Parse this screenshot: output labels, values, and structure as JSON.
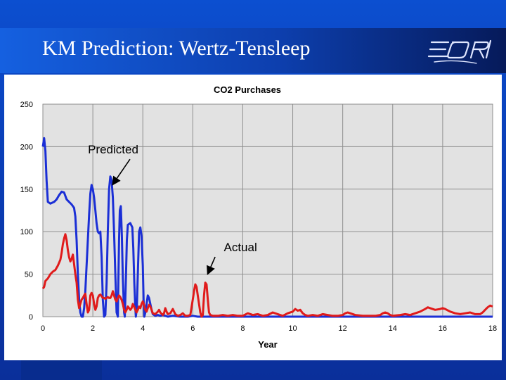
{
  "slide": {
    "title": "KM Prediction: Wertz-Tensleep",
    "logo_icon": "eori-logo-icon"
  },
  "colors": {
    "predicted": "#1b2fd6",
    "actual": "#e01b1b",
    "plot_bg": "#e2e2e2"
  },
  "chart_data": {
    "type": "line",
    "title": "CO2 Purchases",
    "xlabel": "Year",
    "ylabel": "",
    "xlim": [
      0,
      18
    ],
    "ylim": [
      0,
      250
    ],
    "xticks": [
      0,
      2,
      4,
      6,
      8,
      10,
      12,
      14,
      16,
      18
    ],
    "yticks": [
      0,
      50,
      100,
      150,
      200,
      250
    ],
    "grid": true,
    "annotations": [
      {
        "text": "Predicted",
        "points_to": [
          2.7,
          153
        ]
      },
      {
        "text": "Actual",
        "points_to": [
          6.5,
          48
        ]
      }
    ],
    "series": [
      {
        "name": "",
        "color": "#1b2fd6",
        "points": [
          [
            0,
            200
          ],
          [
            0.05,
            210
          ],
          [
            0.1,
            195
          ],
          [
            0.15,
            160
          ],
          [
            0.2,
            135
          ],
          [
            0.3,
            133
          ],
          [
            0.45,
            135
          ],
          [
            0.55,
            138
          ],
          [
            0.65,
            143
          ],
          [
            0.75,
            147
          ],
          [
            0.85,
            146
          ],
          [
            0.95,
            138
          ],
          [
            1.05,
            135
          ],
          [
            1.15,
            132
          ],
          [
            1.25,
            128
          ],
          [
            1.3,
            118
          ],
          [
            1.35,
            90
          ],
          [
            1.4,
            50
          ],
          [
            1.45,
            20
          ],
          [
            1.5,
            5
          ],
          [
            1.55,
            0
          ],
          [
            1.6,
            0
          ],
          [
            1.65,
            10
          ],
          [
            1.7,
            30
          ],
          [
            1.75,
            60
          ],
          [
            1.8,
            90
          ],
          [
            1.85,
            120
          ],
          [
            1.9,
            145
          ],
          [
            1.95,
            155
          ],
          [
            2.0,
            150
          ],
          [
            2.05,
            140
          ],
          [
            2.1,
            125
          ],
          [
            2.15,
            110
          ],
          [
            2.2,
            100
          ],
          [
            2.25,
            98
          ],
          [
            2.3,
            100
          ],
          [
            2.35,
            70
          ],
          [
            2.4,
            20
          ],
          [
            2.45,
            0
          ],
          [
            2.5,
            2
          ],
          [
            2.55,
            40
          ],
          [
            2.6,
            100
          ],
          [
            2.65,
            150
          ],
          [
            2.7,
            165
          ],
          [
            2.75,
            160
          ],
          [
            2.8,
            140
          ],
          [
            2.85,
            100
          ],
          [
            2.9,
            50
          ],
          [
            2.95,
            5
          ],
          [
            3.0,
            0
          ],
          [
            3.02,
            40
          ],
          [
            3.05,
            90
          ],
          [
            3.08,
            125
          ],
          [
            3.12,
            130
          ],
          [
            3.16,
            95
          ],
          [
            3.2,
            45
          ],
          [
            3.25,
            5
          ],
          [
            3.28,
            0
          ],
          [
            3.32,
            40
          ],
          [
            3.36,
            90
          ],
          [
            3.4,
            108
          ],
          [
            3.5,
            110
          ],
          [
            3.58,
            105
          ],
          [
            3.62,
            80
          ],
          [
            3.66,
            40
          ],
          [
            3.7,
            10
          ],
          [
            3.72,
            0
          ],
          [
            3.76,
            10
          ],
          [
            3.8,
            50
          ],
          [
            3.85,
            100
          ],
          [
            3.9,
            105
          ],
          [
            3.95,
            95
          ],
          [
            4.0,
            60
          ],
          [
            4.03,
            20
          ],
          [
            4.06,
            0
          ],
          [
            4.1,
            5
          ],
          [
            4.15,
            15
          ],
          [
            4.2,
            25
          ],
          [
            4.25,
            22
          ],
          [
            4.3,
            15
          ],
          [
            4.35,
            8
          ],
          [
            4.4,
            3
          ],
          [
            4.5,
            1
          ],
          [
            4.6,
            2
          ],
          [
            4.7,
            1
          ],
          [
            4.8,
            2
          ],
          [
            4.9,
            1
          ],
          [
            5.0,
            0
          ],
          [
            5.2,
            1
          ],
          [
            5.5,
            0
          ],
          [
            5.8,
            0
          ],
          [
            6.0,
            1
          ],
          [
            6.2,
            0
          ],
          [
            6.5,
            0
          ],
          [
            7,
            0
          ],
          [
            8,
            0
          ],
          [
            9,
            0
          ],
          [
            10,
            0
          ],
          [
            11,
            0
          ],
          [
            12,
            0
          ],
          [
            13,
            0
          ],
          [
            14,
            0
          ],
          [
            15,
            0
          ],
          [
            16,
            0
          ],
          [
            17,
            0
          ],
          [
            18,
            0
          ]
        ]
      },
      {
        "name": "",
        "color": "#e01b1b",
        "points": [
          [
            0,
            33
          ],
          [
            0.05,
            35
          ],
          [
            0.1,
            42
          ],
          [
            0.2,
            45
          ],
          [
            0.3,
            50
          ],
          [
            0.4,
            53
          ],
          [
            0.5,
            55
          ],
          [
            0.6,
            60
          ],
          [
            0.7,
            67
          ],
          [
            0.75,
            75
          ],
          [
            0.8,
            85
          ],
          [
            0.85,
            92
          ],
          [
            0.9,
            97
          ],
          [
            0.95,
            90
          ],
          [
            1.0,
            78
          ],
          [
            1.05,
            70
          ],
          [
            1.1,
            65
          ],
          [
            1.15,
            68
          ],
          [
            1.2,
            73
          ],
          [
            1.25,
            62
          ],
          [
            1.3,
            50
          ],
          [
            1.35,
            40
          ],
          [
            1.4,
            20
          ],
          [
            1.45,
            10
          ],
          [
            1.5,
            15
          ],
          [
            1.55,
            20
          ],
          [
            1.6,
            22
          ],
          [
            1.65,
            25
          ],
          [
            1.7,
            27
          ],
          [
            1.75,
            15
          ],
          [
            1.8,
            5
          ],
          [
            1.85,
            8
          ],
          [
            1.9,
            25
          ],
          [
            1.95,
            28
          ],
          [
            2.0,
            25
          ],
          [
            2.05,
            15
          ],
          [
            2.1,
            8
          ],
          [
            2.15,
            12
          ],
          [
            2.2,
            22
          ],
          [
            2.25,
            25
          ],
          [
            2.3,
            26
          ],
          [
            2.35,
            24
          ],
          [
            2.4,
            22
          ],
          [
            2.45,
            22
          ],
          [
            2.5,
            21
          ],
          [
            2.55,
            22
          ],
          [
            2.6,
            23
          ],
          [
            2.65,
            22
          ],
          [
            2.7,
            22
          ],
          [
            2.75,
            25
          ],
          [
            2.8,
            30
          ],
          [
            2.85,
            25
          ],
          [
            2.9,
            20
          ],
          [
            2.95,
            18
          ],
          [
            3.0,
            22
          ],
          [
            3.05,
            25
          ],
          [
            3.1,
            23
          ],
          [
            3.15,
            20
          ],
          [
            3.2,
            15
          ],
          [
            3.25,
            8
          ],
          [
            3.3,
            5
          ],
          [
            3.35,
            8
          ],
          [
            3.4,
            12
          ],
          [
            3.45,
            10
          ],
          [
            3.5,
            8
          ],
          [
            3.55,
            10
          ],
          [
            3.6,
            15
          ],
          [
            3.65,
            12
          ],
          [
            3.7,
            8
          ],
          [
            3.75,
            5
          ],
          [
            3.8,
            8
          ],
          [
            3.85,
            12
          ],
          [
            3.9,
            10
          ],
          [
            3.95,
            15
          ],
          [
            4.0,
            18
          ],
          [
            4.05,
            14
          ],
          [
            4.1,
            8
          ],
          [
            4.15,
            6
          ],
          [
            4.2,
            10
          ],
          [
            4.25,
            14
          ],
          [
            4.3,
            12
          ],
          [
            4.35,
            8
          ],
          [
            4.4,
            4
          ],
          [
            4.5,
            3
          ],
          [
            4.6,
            6
          ],
          [
            4.65,
            8
          ],
          [
            4.7,
            5
          ],
          [
            4.8,
            2
          ],
          [
            4.85,
            4
          ],
          [
            4.9,
            10
          ],
          [
            4.95,
            6
          ],
          [
            5.0,
            3
          ],
          [
            5.1,
            4
          ],
          [
            5.2,
            9
          ],
          [
            5.3,
            3
          ],
          [
            5.4,
            1
          ],
          [
            5.5,
            2
          ],
          [
            5.6,
            4
          ],
          [
            5.7,
            1
          ],
          [
            5.8,
            1
          ],
          [
            5.9,
            2
          ],
          [
            6.0,
            20
          ],
          [
            6.05,
            30
          ],
          [
            6.1,
            38
          ],
          [
            6.15,
            35
          ],
          [
            6.2,
            25
          ],
          [
            6.25,
            15
          ],
          [
            6.3,
            5
          ],
          [
            6.35,
            0
          ],
          [
            6.4,
            2
          ],
          [
            6.45,
            25
          ],
          [
            6.5,
            40
          ],
          [
            6.55,
            38
          ],
          [
            6.6,
            20
          ],
          [
            6.65,
            5
          ],
          [
            6.7,
            2
          ],
          [
            6.8,
            1
          ],
          [
            7.0,
            1
          ],
          [
            7.2,
            2
          ],
          [
            7.4,
            1
          ],
          [
            7.6,
            2
          ],
          [
            7.8,
            1
          ],
          [
            8.0,
            1
          ],
          [
            8.2,
            4
          ],
          [
            8.4,
            2
          ],
          [
            8.6,
            3
          ],
          [
            8.8,
            1
          ],
          [
            9.0,
            2
          ],
          [
            9.2,
            5
          ],
          [
            9.4,
            3
          ],
          [
            9.6,
            1
          ],
          [
            9.8,
            4
          ],
          [
            10.0,
            6
          ],
          [
            10.1,
            9
          ],
          [
            10.2,
            7
          ],
          [
            10.3,
            8
          ],
          [
            10.4,
            4
          ],
          [
            10.5,
            2
          ],
          [
            10.6,
            1
          ],
          [
            10.8,
            2
          ],
          [
            11.0,
            1
          ],
          [
            11.2,
            3
          ],
          [
            11.4,
            2
          ],
          [
            11.6,
            1
          ],
          [
            11.8,
            1
          ],
          [
            12.0,
            2
          ],
          [
            12.1,
            4
          ],
          [
            12.2,
            5
          ],
          [
            12.3,
            4
          ],
          [
            12.5,
            2
          ],
          [
            12.8,
            1
          ],
          [
            13.0,
            1
          ],
          [
            13.3,
            1
          ],
          [
            13.5,
            2
          ],
          [
            13.6,
            4
          ],
          [
            13.7,
            5
          ],
          [
            13.8,
            4
          ],
          [
            13.9,
            2
          ],
          [
            14.0,
            1
          ],
          [
            14.3,
            2
          ],
          [
            14.5,
            3
          ],
          [
            14.7,
            2
          ],
          [
            14.9,
            4
          ],
          [
            15.1,
            6
          ],
          [
            15.3,
            9
          ],
          [
            15.4,
            11
          ],
          [
            15.5,
            10
          ],
          [
            15.7,
            8
          ],
          [
            15.9,
            9
          ],
          [
            16.0,
            10
          ],
          [
            16.1,
            9
          ],
          [
            16.3,
            6
          ],
          [
            16.5,
            4
          ],
          [
            16.7,
            3
          ],
          [
            16.9,
            4
          ],
          [
            17.1,
            5
          ],
          [
            17.3,
            3
          ],
          [
            17.5,
            3
          ],
          [
            17.6,
            5
          ],
          [
            17.7,
            8
          ],
          [
            17.8,
            11
          ],
          [
            17.9,
            13
          ],
          [
            18,
            12
          ]
        ]
      }
    ]
  }
}
